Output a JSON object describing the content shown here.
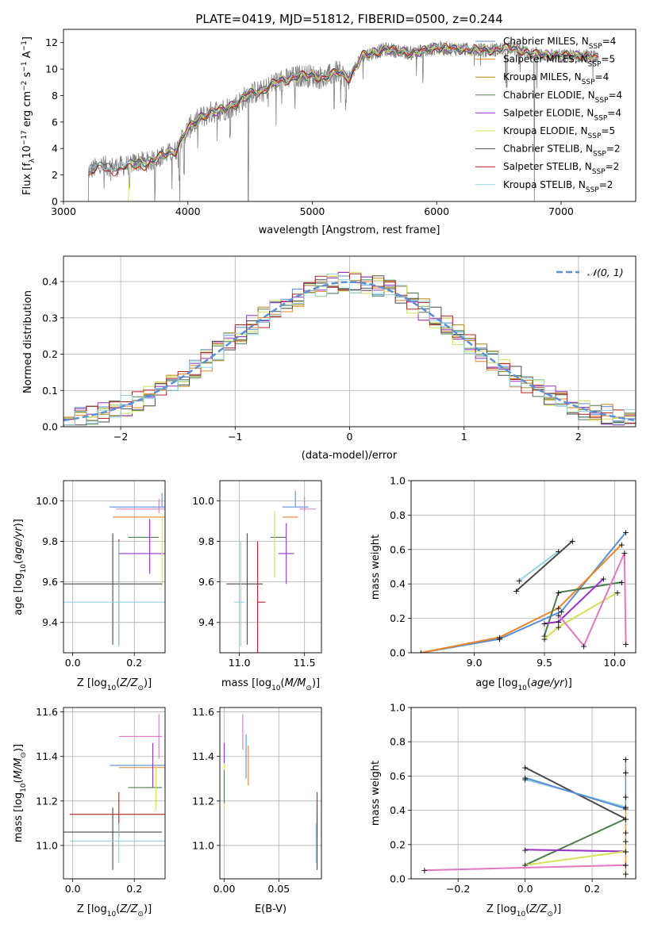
{
  "title": "PLATE=0419, MJD=51812, FIBERID=0500, z=0.244",
  "colors": {
    "Chabrier MILES": "#5b8fd6",
    "Salpeter MILES": "#e8862a",
    "Kroupa MILES": "#b8860b",
    "Chabrier ELODIE": "#4d7d4d",
    "Salpeter ELODIE": "#9b30c6",
    "Kroupa ELODIE": "#d4e157",
    "Chabrier STELIB": "#4a4a4a",
    "Salpeter STELIB": "#b22222",
    "Kroupa STELIB": "#8fd3e0",
    "data": "#808080",
    "pink": "#e377c2"
  },
  "chart_data": [
    {
      "type": "line",
      "id": "spectrum",
      "xlabel": "wavelength [Angstrom, rest frame]",
      "ylabel": "Flux [f_λ10^-17 erg cm^-2 s^-1 A^-1]",
      "xlim": [
        3000,
        7600
      ],
      "ylim": [
        0,
        13
      ],
      "xticks": [
        3000,
        4000,
        5000,
        6000,
        7000
      ],
      "yticks": [
        0,
        2,
        4,
        6,
        8,
        10,
        12
      ],
      "legend_position": "top-right",
      "legend": [
        {
          "label": "Chabrier MILES, N",
          "sub": "SSP",
          "tail": "=4"
        },
        {
          "label": "Salpeter MILES, N",
          "sub": "SSP",
          "tail": "=5"
        },
        {
          "label": "Kroupa MILES, N",
          "sub": "SSP",
          "tail": "=4"
        },
        {
          "label": "Chabrier ELODIE, N",
          "sub": "SSP",
          "tail": "=4"
        },
        {
          "label": "Salpeter ELODIE, N",
          "sub": "SSP",
          "tail": "=4"
        },
        {
          "label": "Kroupa ELODIE, N",
          "sub": "SSP",
          "tail": "=5"
        },
        {
          "label": "Chabrier STELIB, N",
          "sub": "SSP",
          "tail": "=2"
        },
        {
          "label": "Salpeter STELIB, N",
          "sub": "SSP",
          "tail": "=2"
        },
        {
          "label": "Kroupa STELIB, N",
          "sub": "SSP",
          "tail": "=2"
        }
      ],
      "continuum": {
        "wavelength": [
          3200,
          3300,
          3400,
          3500,
          3600,
          3700,
          3800,
          3900,
          4000,
          4100,
          4200,
          4300,
          4400,
          4500,
          4600,
          4700,
          4800,
          4900,
          5000,
          5100,
          5200,
          5300,
          5400,
          5600,
          5800,
          6000,
          6200,
          6400,
          6600,
          6800,
          7000,
          7200,
          7300
        ],
        "flux": [
          2.3,
          2.7,
          2.6,
          2.7,
          3.0,
          3.0,
          3.5,
          3.8,
          5.5,
          6.3,
          6.8,
          7.0,
          7.4,
          8.2,
          8.3,
          9.0,
          9.2,
          9.5,
          9.5,
          9.3,
          9.8,
          9.3,
          11.0,
          11.5,
          11.2,
          11.6,
          11.5,
          11.4,
          11.6,
          11.1,
          11.0,
          11.0,
          10.8
        ]
      }
    },
    {
      "type": "line",
      "id": "residuals",
      "xlabel": "(data-model)/error",
      "ylabel": "Normed distribution",
      "xlim": [
        -2.5,
        2.5
      ],
      "ylim": [
        0,
        0.47
      ],
      "xticks": [
        -2,
        -1,
        0,
        1,
        2
      ],
      "yticks": [
        0.0,
        0.1,
        0.2,
        0.3,
        0.4
      ],
      "legend_position": "top-right",
      "legend": [
        {
          "label": "𝒩(0, 1)"
        }
      ],
      "grid": true
    },
    {
      "type": "scatter",
      "id": "age-vs-Z",
      "xlabel": "Z [log10(Z/Z⊙)]",
      "ylabel": "age [log10(age/yr)]",
      "xlim": [
        -0.03,
        0.3
      ],
      "ylim": [
        9.25,
        10.1
      ],
      "xticks": [
        0.0,
        0.2
      ],
      "yticks": [
        9.4,
        9.6,
        9.8,
        10.0
      ],
      "grid": true
    },
    {
      "type": "scatter",
      "id": "age-vs-mass",
      "xlabel": "mass [log10(M/M⊙)]",
      "xlim": [
        10.85,
        11.63
      ],
      "ylim": [
        9.25,
        10.1
      ],
      "xticks": [
        11.0,
        11.5
      ],
      "yticks": [
        9.4,
        9.6,
        9.8,
        10.0
      ],
      "grid": true
    },
    {
      "type": "line",
      "id": "weight-vs-age",
      "xlabel": "age [log10(age/yr)]",
      "ylabel": "mass weight",
      "xlim": [
        8.55,
        10.15
      ],
      "ylim": [
        0,
        1.0
      ],
      "xticks": [
        9.0,
        9.5,
        10.0
      ],
      "yticks": [
        0.0,
        0.2,
        0.4,
        0.6,
        0.8,
        1.0
      ],
      "grid": true
    },
    {
      "type": "scatter",
      "id": "mass-vs-Z",
      "xlabel": "Z [log10(Z/Z⊙)]",
      "ylabel": "mass [log10(M/M⊙)]",
      "xlim": [
        -0.03,
        0.3
      ],
      "ylim": [
        10.85,
        11.62
      ],
      "xticks": [
        0.0,
        0.2
      ],
      "yticks": [
        11.0,
        11.2,
        11.4,
        11.6
      ],
      "grid": true
    },
    {
      "type": "scatter",
      "id": "mass-vs-ebv",
      "xlabel": "E(B-V)",
      "xlim": [
        -0.004,
        0.089
      ],
      "ylim": [
        10.85,
        11.62
      ],
      "xticks": [
        0.0,
        0.05
      ],
      "yticks": [
        11.0,
        11.2,
        11.4,
        11.6
      ],
      "grid": true
    },
    {
      "type": "line",
      "id": "weight-vs-Z",
      "xlabel": "Z [log10(Z/Z⊙)]",
      "ylabel": "mass weight",
      "xlim": [
        -0.34,
        0.33
      ],
      "ylim": [
        0,
        1.0
      ],
      "xticks": [
        -0.2,
        0.0,
        0.2
      ],
      "yticks": [
        0.0,
        0.2,
        0.4,
        0.6,
        0.8,
        1.0
      ],
      "grid": true
    }
  ]
}
